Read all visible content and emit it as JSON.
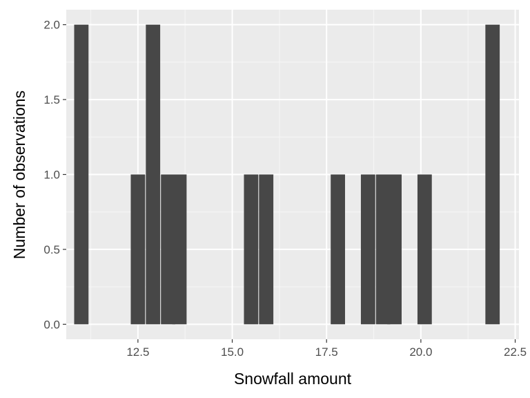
{
  "colors": {
    "panel_background": "#ebebeb",
    "grid_major": "#ffffff",
    "grid_minor": "#f5f5f5",
    "bar_fill": "#474747",
    "tick_mark": "#333333"
  },
  "chart_data": {
    "type": "bar",
    "title": "",
    "xlabel": "Snowfall amount",
    "ylabel": "Number of observations",
    "xlim": [
      10.6,
      22.6
    ],
    "ylim": [
      -0.1,
      2.1
    ],
    "grid": true,
    "x_ticks": [
      12.5,
      15.0,
      17.5,
      20.0,
      22.5
    ],
    "x_tick_labels": [
      "12.5",
      "15.0",
      "17.5",
      "20.0",
      "22.5"
    ],
    "y_ticks": [
      0,
      0.5,
      1,
      1.5,
      2
    ],
    "y_tick_labels": [
      "0.0",
      "0.5",
      "1.0",
      "1.5",
      "2.0"
    ],
    "bin_width": 0.38,
    "bins": [
      {
        "x": 11.0,
        "count": 2
      },
      {
        "x": 12.5,
        "count": 1
      },
      {
        "x": 12.9,
        "count": 2
      },
      {
        "x": 13.3,
        "count": 1
      },
      {
        "x": 13.6,
        "count": 1
      },
      {
        "x": 15.5,
        "count": 1
      },
      {
        "x": 15.9,
        "count": 1
      },
      {
        "x": 17.8,
        "count": 1
      },
      {
        "x": 18.6,
        "count": 1
      },
      {
        "x": 19.0,
        "count": 1
      },
      {
        "x": 19.3,
        "count": 1
      },
      {
        "x": 20.1,
        "count": 1
      },
      {
        "x": 21.9,
        "count": 2
      }
    ]
  }
}
